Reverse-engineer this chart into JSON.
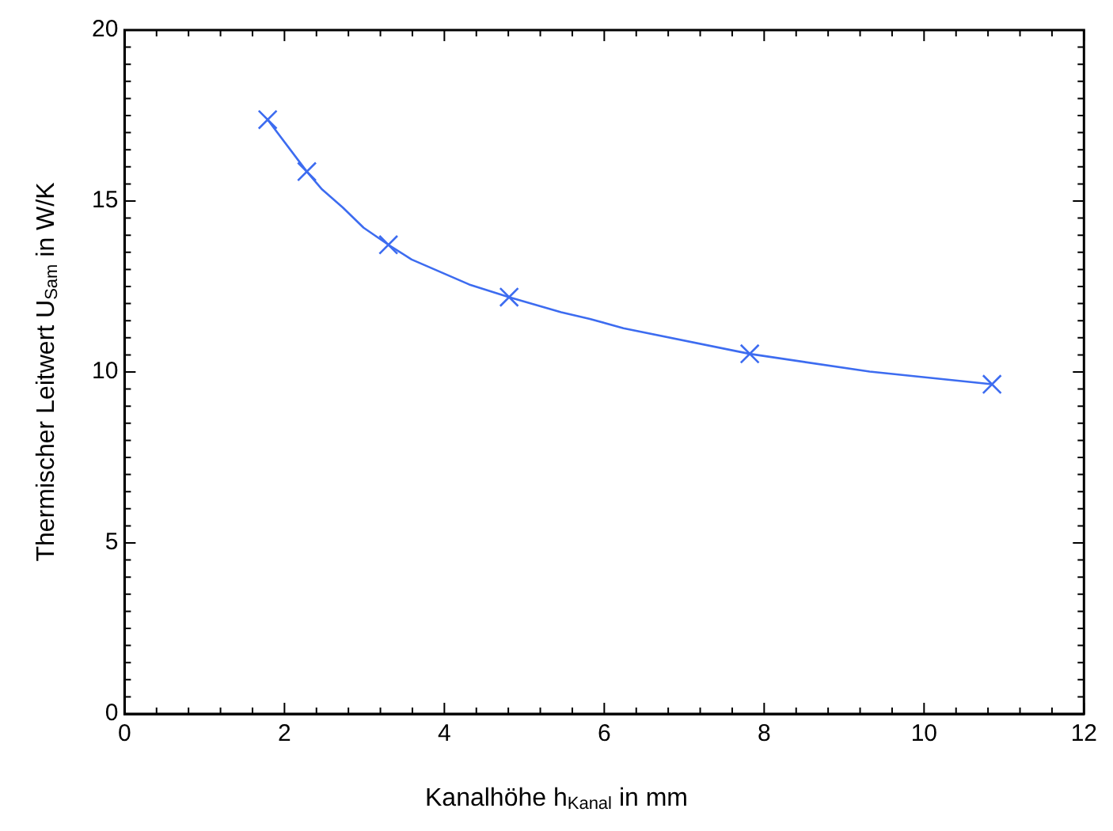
{
  "chart_data": {
    "type": "scatter",
    "xlabel": "Kanalhöhe h$_{Kanal}$ in mm",
    "ylabel": "Thermischer Leitwert U$_{Sam}$ in W/K",
    "xlim": [
      0,
      12
    ],
    "xticks": [
      0,
      2,
      4,
      6,
      8,
      10,
      12
    ],
    "ylim": [
      0,
      20
    ],
    "yticks": [
      0,
      5,
      10,
      15,
      20
    ],
    "grid": false,
    "legend": false,
    "series": [
      {
        "type": "line",
        "color": "#3d6cf0",
        "marker": "none",
        "x": [
          1.79,
          2.28,
          2.47,
          2.73,
          2.99,
          3.3,
          3.59,
          4.31,
          4.81,
          5.46,
          5.82,
          6.24,
          7.82,
          9.32,
          10.85
        ],
        "values": [
          17.38,
          15.86,
          15.34,
          14.81,
          14.22,
          13.72,
          13.29,
          12.56,
          12.19,
          11.75,
          11.55,
          11.28,
          10.53,
          10.01,
          9.64
        ]
      },
      {
        "type": "scatter",
        "color": "#3d6cf0",
        "marker": "cross",
        "x": [
          1.79,
          2.28,
          3.3,
          4.81,
          7.82,
          10.85
        ],
        "values": [
          17.38,
          15.86,
          13.72,
          12.19,
          10.53,
          9.64
        ]
      }
    ]
  }
}
